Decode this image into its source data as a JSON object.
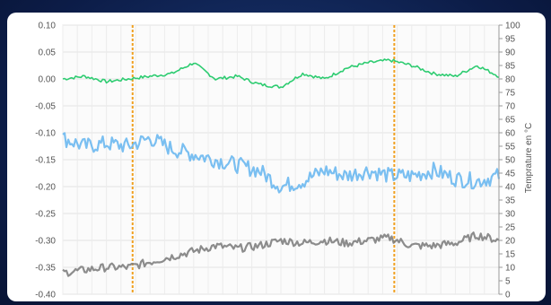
{
  "chart_data": {
    "type": "line",
    "title": "",
    "xlabel": "",
    "ylabel_left": "",
    "ylabel_right": "Temprature en °C",
    "left_axis": {
      "ylim": [
        -0.4,
        0.1
      ],
      "ticks": [
        "0.10",
        "0.05",
        "0.00",
        "-0.05",
        "-0.10",
        "-0.15",
        "-0.20",
        "-0.25",
        "-0.30",
        "-0.35",
        "-0.40"
      ]
    },
    "right_axis": {
      "ylim": [
        0,
        100
      ],
      "ticks": [
        "100",
        "95",
        "90",
        "85",
        "80",
        "75",
        "70",
        "65",
        "60",
        "55",
        "50",
        "45",
        "40",
        "35",
        "30",
        "25",
        "20",
        "15",
        "10",
        "5",
        "0"
      ]
    },
    "grid": true,
    "legend": "none",
    "vertical_markers": [
      {
        "x": 0.16,
        "color": "#f0a020"
      },
      {
        "x": 0.76,
        "color": "#f0a020"
      }
    ],
    "x": [
      0,
      0.05,
      0.1,
      0.15,
      0.2,
      0.25,
      0.3,
      0.35,
      0.4,
      0.45,
      0.5,
      0.55,
      0.6,
      0.65,
      0.7,
      0.75,
      0.8,
      0.85,
      0.9,
      0.95,
      1.0
    ],
    "series": [
      {
        "color": "#2ecc71",
        "axis": "left",
        "values": [
          0.0,
          0.005,
          -0.005,
          0.0,
          0.005,
          0.01,
          0.03,
          0.0,
          0.005,
          -0.01,
          -0.015,
          0.01,
          0.0,
          0.02,
          0.03,
          0.035,
          0.025,
          0.01,
          0.005,
          0.025,
          0.005
        ]
      },
      {
        "color": "#6cb8ef",
        "axis": "left",
        "band": 0.03,
        "values": [
          -0.11,
          -0.125,
          -0.12,
          -0.125,
          -0.11,
          -0.13,
          -0.14,
          -0.15,
          -0.16,
          -0.17,
          -0.2,
          -0.19,
          -0.17,
          -0.18,
          -0.17,
          -0.18,
          -0.18,
          -0.17,
          -0.185,
          -0.19,
          -0.18
        ]
      },
      {
        "color": "#7f7f7f",
        "axis": "left",
        "band": 0.015,
        "values": [
          -0.36,
          -0.355,
          -0.35,
          -0.35,
          -0.34,
          -0.33,
          -0.32,
          -0.31,
          -0.315,
          -0.31,
          -0.3,
          -0.305,
          -0.3,
          -0.305,
          -0.3,
          -0.295,
          -0.31,
          -0.31,
          -0.305,
          -0.29,
          -0.3
        ]
      }
    ]
  }
}
